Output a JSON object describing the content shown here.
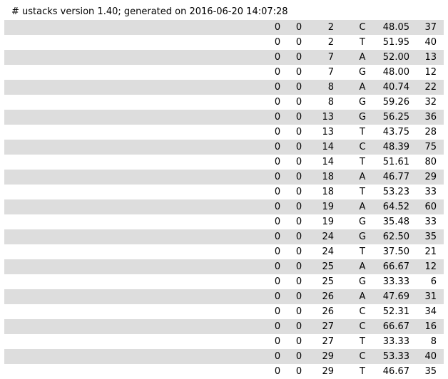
{
  "header": {
    "text": "# ustacks version 1.40; generated on 2016-06-20 14:07:28"
  },
  "rows": [
    [
      "0",
      "0",
      "2",
      "C",
      "48.05",
      "37"
    ],
    [
      "0",
      "0",
      "2",
      "T",
      "51.95",
      "40"
    ],
    [
      "0",
      "0",
      "7",
      "A",
      "52.00",
      "13"
    ],
    [
      "0",
      "0",
      "7",
      "G",
      "48.00",
      "12"
    ],
    [
      "0",
      "0",
      "8",
      "A",
      "40.74",
      "22"
    ],
    [
      "0",
      "0",
      "8",
      "G",
      "59.26",
      "32"
    ],
    [
      "0",
      "0",
      "13",
      "G",
      "56.25",
      "36"
    ],
    [
      "0",
      "0",
      "13",
      "T",
      "43.75",
      "28"
    ],
    [
      "0",
      "0",
      "14",
      "C",
      "48.39",
      "75"
    ],
    [
      "0",
      "0",
      "14",
      "T",
      "51.61",
      "80"
    ],
    [
      "0",
      "0",
      "18",
      "A",
      "46.77",
      "29"
    ],
    [
      "0",
      "0",
      "18",
      "T",
      "53.23",
      "33"
    ],
    [
      "0",
      "0",
      "19",
      "A",
      "64.52",
      "60"
    ],
    [
      "0",
      "0",
      "19",
      "G",
      "35.48",
      "33"
    ],
    [
      "0",
      "0",
      "24",
      "G",
      "62.50",
      "35"
    ],
    [
      "0",
      "0",
      "24",
      "T",
      "37.50",
      "21"
    ],
    [
      "0",
      "0",
      "25",
      "A",
      "66.67",
      "12"
    ],
    [
      "0",
      "0",
      "25",
      "G",
      "33.33",
      "6"
    ],
    [
      "0",
      "0",
      "26",
      "A",
      "47.69",
      "31"
    ],
    [
      "0",
      "0",
      "26",
      "C",
      "52.31",
      "34"
    ],
    [
      "0",
      "0",
      "27",
      "C",
      "66.67",
      "16"
    ],
    [
      "0",
      "0",
      "27",
      "T",
      "33.33",
      "8"
    ],
    [
      "0",
      "0",
      "29",
      "C",
      "53.33",
      "40"
    ],
    [
      "0",
      "0",
      "29",
      "T",
      "46.67",
      "35"
    ]
  ]
}
